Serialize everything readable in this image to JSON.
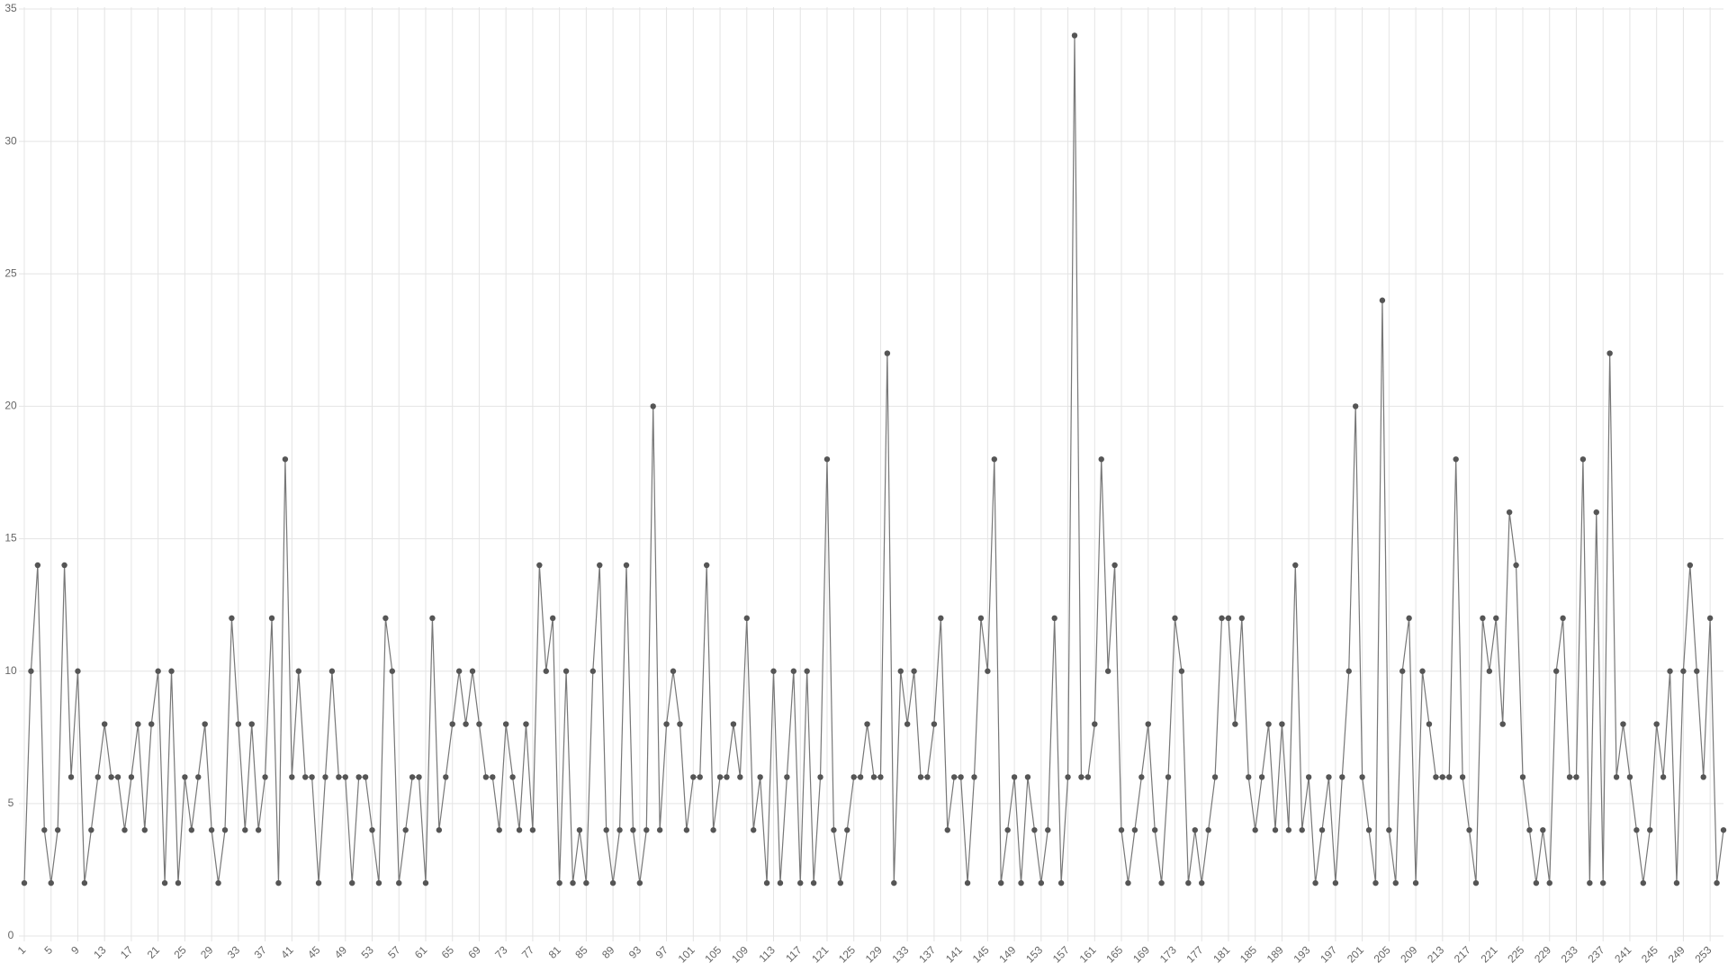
{
  "chart_data": {
    "type": "line",
    "categories": [
      1,
      null,
      null,
      null,
      5,
      null,
      null,
      null,
      9,
      null,
      null,
      null,
      13,
      null,
      null,
      null,
      17,
      null,
      null,
      null,
      21,
      null,
      null,
      null,
      25,
      null,
      null,
      null,
      29,
      null,
      null,
      null,
      33,
      null,
      null,
      null,
      37,
      null,
      null,
      null,
      41,
      null,
      null,
      null,
      45,
      null,
      null,
      null,
      49,
      null,
      null,
      null,
      53,
      null,
      null,
      null,
      57,
      null,
      null,
      null,
      61,
      null,
      null,
      null,
      65,
      null,
      null,
      null,
      69,
      null,
      null,
      null,
      73,
      null,
      null,
      null,
      77,
      null,
      null,
      null,
      81,
      null,
      null,
      null,
      85,
      null,
      null,
      null,
      89,
      null,
      null,
      null,
      93,
      null,
      null,
      null,
      97,
      null,
      null,
      null,
      101,
      null,
      null,
      null,
      105,
      null,
      null,
      null,
      109,
      null,
      null,
      null,
      113,
      null,
      null,
      null,
      117,
      null,
      null,
      null,
      121,
      null,
      null,
      null,
      125,
      null,
      null,
      null,
      129,
      null,
      null,
      null,
      133,
      null,
      null,
      null,
      137,
      null,
      null,
      null,
      141,
      null,
      null,
      null,
      145,
      null,
      null,
      null,
      149,
      null,
      null,
      null,
      153,
      null,
      null,
      null,
      157,
      null,
      null,
      null,
      161,
      null,
      null,
      null,
      165,
      null,
      null,
      null,
      169,
      null,
      null,
      null,
      173,
      null,
      null,
      null,
      177,
      null,
      null,
      null,
      181,
      null,
      null,
      null,
      185,
      null,
      null,
      null,
      189,
      null,
      null,
      null,
      193,
      null,
      null,
      null,
      197,
      null,
      null,
      null,
      201,
      null,
      null,
      null,
      205,
      null,
      null,
      null,
      209,
      null,
      null,
      null,
      213,
      null,
      null,
      null,
      217,
      null,
      null,
      null,
      221,
      null,
      null,
      null,
      225,
      null,
      null,
      null,
      229,
      null,
      null,
      null,
      233,
      null,
      null,
      null,
      237,
      null,
      null,
      null,
      241,
      null,
      null,
      null,
      245,
      null,
      null,
      null,
      249,
      null,
      null,
      null,
      253,
      null,
      null
    ],
    "values": [
      2,
      10,
      14,
      4,
      2,
      4,
      14,
      6,
      10,
      2,
      4,
      6,
      8,
      6,
      6,
      4,
      6,
      8,
      4,
      8,
      10,
      2,
      10,
      2,
      6,
      4,
      6,
      8,
      4,
      2,
      4,
      12,
      8,
      4,
      8,
      4,
      6,
      12,
      2,
      18,
      6,
      10,
      6,
      6,
      2,
      6,
      10,
      6,
      6,
      2,
      6,
      6,
      4,
      2,
      12,
      10,
      2,
      4,
      6,
      6,
      2,
      12,
      4,
      6,
      8,
      10,
      8,
      10,
      8,
      6,
      6,
      4,
      8,
      6,
      4,
      8,
      4,
      14,
      10,
      12,
      2,
      10,
      2,
      4,
      2,
      10,
      14,
      4,
      2,
      4,
      14,
      4,
      2,
      4,
      20,
      4,
      8,
      10,
      8,
      4,
      6,
      6,
      14,
      4,
      6,
      6,
      8,
      6,
      12,
      4,
      6,
      2,
      10,
      2,
      6,
      10,
      2,
      10,
      2,
      6,
      18,
      4,
      2,
      4,
      6,
      6,
      8,
      6,
      6,
      22,
      2,
      10,
      8,
      10,
      6,
      6,
      8,
      12,
      4,
      6,
      6,
      2,
      6,
      12,
      10,
      18,
      2,
      4,
      6,
      2,
      6,
      4,
      2,
      4,
      12,
      2,
      6,
      34,
      6,
      6,
      8,
      18,
      10,
      14,
      4,
      2,
      4,
      6,
      8,
      4,
      2,
      6,
      12,
      10,
      2,
      4,
      2,
      4,
      6,
      12,
      12,
      8,
      12,
      6,
      4,
      6,
      8,
      4,
      8,
      4,
      14,
      4,
      6,
      2,
      4,
      6,
      2,
      6,
      10,
      20,
      6,
      4,
      2,
      24,
      4,
      2,
      10,
      12,
      2,
      10,
      8,
      6,
      6,
      6,
      18,
      6,
      4,
      2,
      12,
      10,
      12,
      8,
      16,
      14,
      6,
      4,
      2,
      4,
      2,
      10,
      12,
      6,
      6,
      18,
      2,
      16,
      2,
      22,
      6,
      8,
      6,
      4,
      2,
      4,
      8,
      6,
      10,
      2,
      10,
      14,
      10,
      6,
      12,
      2,
      4
    ],
    "color": "#777777",
    "point_color": "#555555",
    "ylim": [
      0,
      35
    ],
    "yticks": [
      0,
      5,
      10,
      15,
      20,
      25,
      30,
      35
    ],
    "grid": true
  }
}
